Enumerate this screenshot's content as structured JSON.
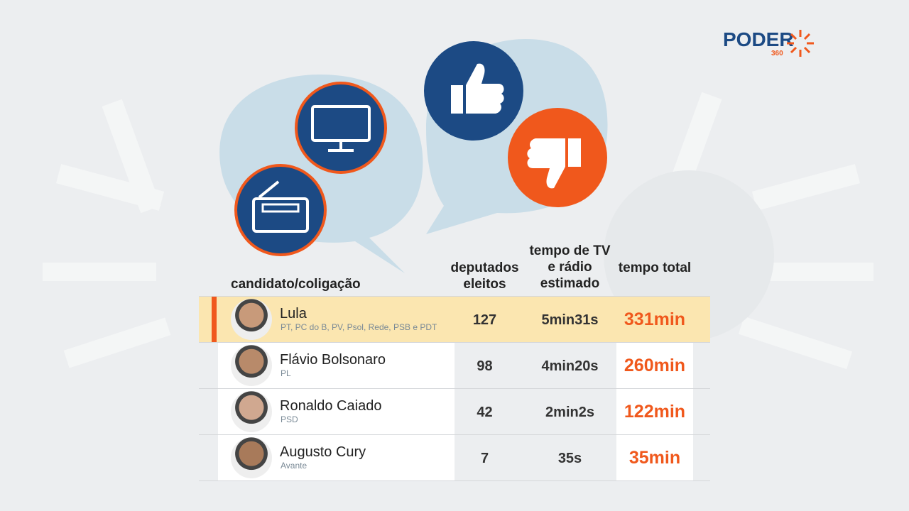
{
  "logo": {
    "name": "PODER",
    "number": "360"
  },
  "table": {
    "headers": [
      "candidato/coligação",
      "deputados eleitos",
      "tempo de TV e rádio estimado",
      "tempo total"
    ],
    "rows": [
      {
        "name": "Lula",
        "party": "PT, PC do B, PV, Psol, Rede, PSB e PDT",
        "deputados": "127",
        "tempo": "5min31s",
        "total": "331min"
      },
      {
        "name": "Flávio Bolsonaro",
        "party": "PL",
        "deputados": "98",
        "tempo": "4min20s",
        "total": "260min"
      },
      {
        "name": "Ronaldo Caiado",
        "party": "PSD",
        "deputados": "42",
        "tempo": "2min2s",
        "total": "122min"
      },
      {
        "name": "Augusto Cury",
        "party": "Avante",
        "deputados": "7",
        "tempo": "35s",
        "total": "35min"
      }
    ]
  }
}
